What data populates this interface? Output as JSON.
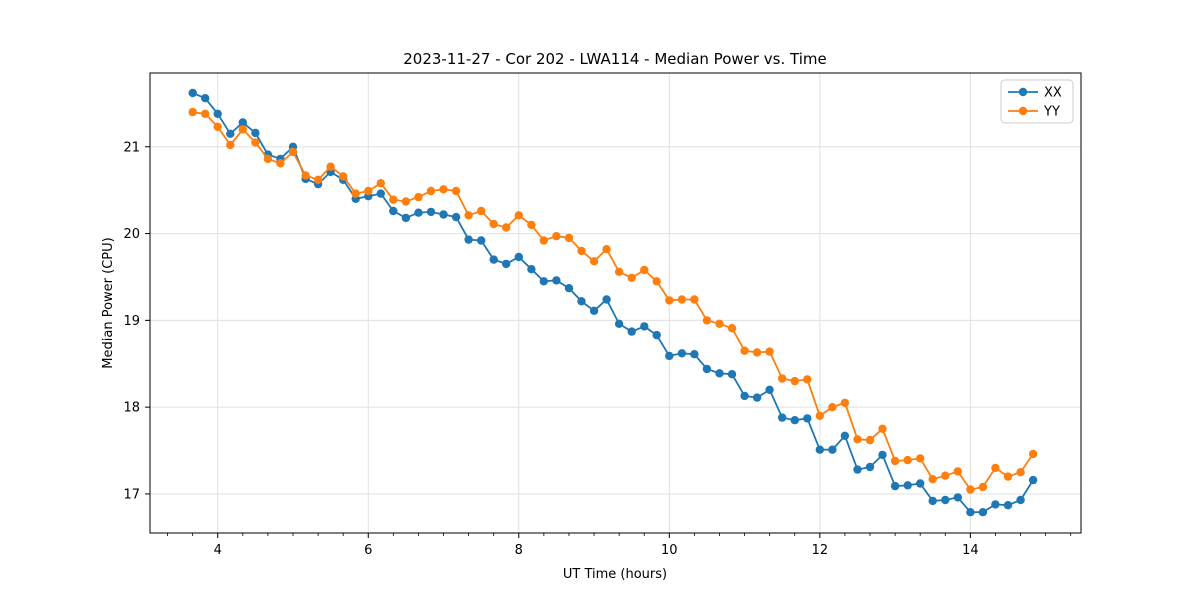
{
  "figure": {
    "title": "2023-11-27 - Cor 202 - LWA114 - Median Power vs. Time"
  },
  "chart_data": {
    "type": "line",
    "title": "2023-11-27 - Cor 202 - LWA114 - Median Power vs. Time",
    "xlabel": "UT Time (hours)",
    "ylabel": "Median Power (CPU)",
    "xlim": [
      3.1,
      15.47
    ],
    "ylim": [
      16.55,
      21.85
    ],
    "xticks": [
      4,
      6,
      8,
      10,
      12,
      14
    ],
    "yticks": [
      17,
      18,
      19,
      20,
      21
    ],
    "x_minor_step": 0.33333,
    "grid": true,
    "grid_color": "#e0e0e0",
    "legend_position": "upper right",
    "marker": "circle",
    "marker_size": 4.2,
    "line_width": 1.8,
    "x": [
      3.667,
      3.833,
      4.0,
      4.167,
      4.333,
      4.5,
      4.667,
      4.833,
      5.0,
      5.167,
      5.333,
      5.5,
      5.667,
      5.833,
      6.0,
      6.167,
      6.333,
      6.5,
      6.667,
      6.833,
      7.0,
      7.167,
      7.333,
      7.5,
      7.667,
      7.833,
      8.0,
      8.167,
      8.333,
      8.5,
      8.667,
      8.833,
      9.0,
      9.167,
      9.333,
      9.5,
      9.667,
      9.833,
      10.0,
      10.167,
      10.333,
      10.5,
      10.667,
      10.833,
      11.0,
      11.167,
      11.333,
      11.5,
      11.667,
      11.833,
      12.0,
      12.167,
      12.333,
      12.5,
      12.667,
      12.833,
      13.0,
      13.167,
      13.333,
      13.5,
      13.667,
      13.833,
      14.0,
      14.167,
      14.333,
      14.5,
      14.667,
      14.833
    ],
    "series": [
      {
        "name": "XX",
        "color": "#1f77b4",
        "values": [
          21.62,
          21.56,
          21.38,
          21.15,
          21.28,
          21.16,
          20.91,
          20.86,
          21.0,
          20.63,
          20.57,
          20.71,
          20.62,
          20.4,
          20.43,
          20.46,
          20.26,
          20.18,
          20.24,
          20.25,
          20.22,
          20.19,
          19.93,
          19.92,
          19.7,
          19.65,
          19.73,
          19.59,
          19.45,
          19.46,
          19.37,
          19.22,
          19.11,
          19.24,
          18.96,
          18.87,
          18.93,
          18.83,
          18.59,
          18.62,
          18.61,
          18.44,
          18.39,
          18.38,
          18.13,
          18.11,
          18.2,
          17.88,
          17.85,
          17.87,
          17.51,
          17.51,
          17.67,
          17.28,
          17.31,
          17.45,
          17.09,
          17.1,
          17.12,
          16.92,
          16.93,
          16.96,
          16.79,
          16.79,
          16.88,
          16.87,
          16.93,
          17.16
        ]
      },
      {
        "name": "YY",
        "color": "#ff7f0e",
        "values": [
          21.4,
          21.38,
          21.23,
          21.02,
          21.2,
          21.05,
          20.86,
          20.81,
          20.94,
          20.67,
          20.62,
          20.77,
          20.66,
          20.46,
          20.49,
          20.58,
          20.39,
          20.37,
          20.42,
          20.49,
          20.51,
          20.49,
          20.21,
          20.26,
          20.11,
          20.07,
          20.21,
          20.1,
          19.92,
          19.97,
          19.95,
          19.8,
          19.68,
          19.82,
          19.56,
          19.49,
          19.58,
          19.45,
          19.23,
          19.24,
          19.24,
          19.0,
          18.96,
          18.91,
          18.65,
          18.63,
          18.64,
          18.33,
          18.3,
          18.32,
          17.9,
          18.0,
          18.05,
          17.63,
          17.62,
          17.75,
          17.38,
          17.39,
          17.41,
          17.17,
          17.21,
          17.26,
          17.05,
          17.08,
          17.3,
          17.2,
          17.25,
          17.46
        ]
      }
    ]
  },
  "colors": {
    "series_xx": "#1f77b4",
    "series_yy": "#ff7f0e",
    "spine": "#000000",
    "grid": "#e0e0e0",
    "legend_border": "#cccccc",
    "background": "#ffffff"
  }
}
